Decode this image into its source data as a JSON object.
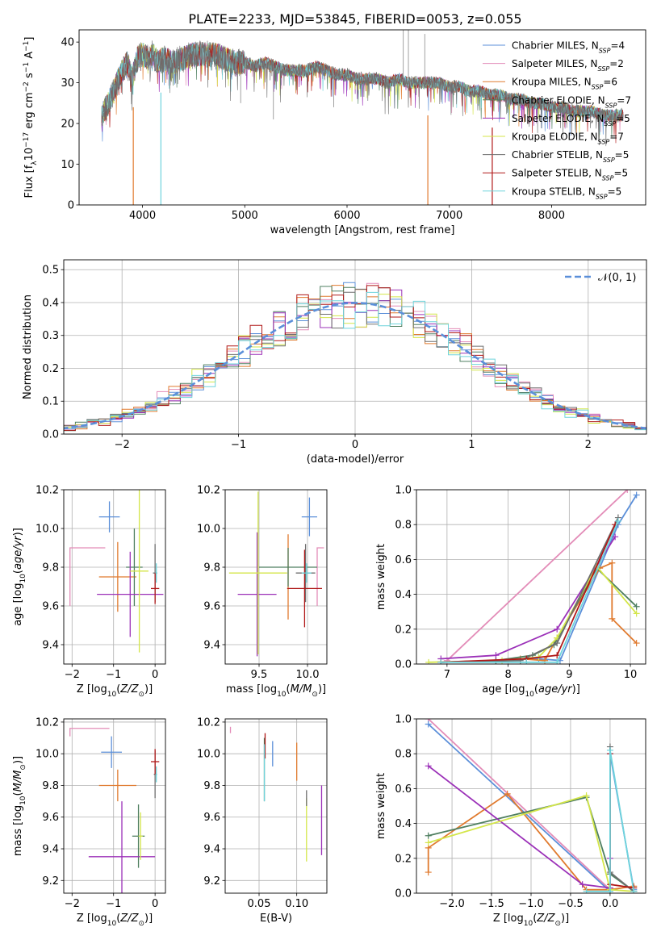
{
  "figure_title": "PLATE=2233, MJD=53845, FIBERID=0053, z=0.055",
  "colors": {
    "Chabrier MILES": "#5b8fd9",
    "Salpeter MILES": "#e38cb8",
    "Kroupa MILES": "#e07a2e",
    "Chabrier ELODIE": "#4f7f60",
    "Salpeter ELODIE": "#9b30b8",
    "Kroupa ELODIE": "#d4e64a",
    "Chabrier STELIB": "#6e6e6e",
    "Salpeter STELIB": "#b01818",
    "Kroupa STELIB": "#6fd4dc"
  },
  "chart_data": [
    {
      "id": "spectrum",
      "type": "line",
      "xlabel": "wavelength [Angstrom, rest frame]",
      "ylabel": "Flux [f",
      "xlim": [
        3380,
        8920
      ],
      "ylim": [
        0,
        43
      ],
      "xticks": [
        4000,
        5000,
        6000,
        7000,
        8000
      ],
      "yticks": [
        0,
        10,
        20,
        30,
        40
      ],
      "grid": false,
      "legend_position": "top-right",
      "legend": [
        {
          "model": "Chabrier MILES",
          "label": "Chabrier MILES, N",
          "n": "4"
        },
        {
          "model": "Salpeter MILES",
          "label": "Salpeter MILES, N",
          "n": "2"
        },
        {
          "model": "Kroupa MILES",
          "label": "Kroupa MILES, N",
          "n": "6"
        },
        {
          "model": "Chabrier ELODIE",
          "label": "Chabrier ELODIE, N",
          "n": "7"
        },
        {
          "model": "Salpeter ELODIE",
          "label": "Salpeter ELODIE, N",
          "n": "5"
        },
        {
          "model": "Kroupa ELODIE",
          "label": "Kroupa ELODIE, N",
          "n": "7"
        },
        {
          "model": "Chabrier STELIB",
          "label": "Chabrier STELIB, N",
          "n": "5"
        },
        {
          "model": "Salpeter STELIB",
          "label": "Salpeter STELIB, N",
          "n": "5"
        },
        {
          "model": "Kroupa STELIB",
          "label": "Kroupa STELIB, N",
          "n": "5"
        }
      ],
      "data_series": {
        "name": "data",
        "x": [
          3600,
          3650,
          3700,
          3750,
          3800,
          3850,
          3900,
          3950,
          4000,
          4050,
          4100,
          4150,
          4200,
          4300,
          4400,
          4500,
          4600,
          4700,
          4800,
          4900,
          5000,
          5100,
          5200,
          5300,
          5400,
          5500,
          5600,
          5700,
          5800,
          5900,
          6000,
          6100,
          6200,
          6300,
          6400,
          6500,
          6600,
          6700,
          6800,
          6900,
          7000,
          7100,
          7200,
          7300,
          7400,
          7500,
          7600,
          7700,
          7800,
          7900,
          8000,
          8100,
          8200,
          8300,
          8400,
          8500,
          8600,
          8700
        ],
        "y": [
          22,
          24,
          27,
          30,
          33,
          35,
          31,
          36,
          37,
          36,
          37,
          35,
          36,
          35,
          36,
          37,
          37,
          37,
          36,
          35,
          35,
          34,
          35,
          34,
          33,
          33,
          33,
          34,
          33,
          32,
          32,
          31,
          31,
          31,
          30,
          31,
          30,
          30,
          30,
          30,
          29,
          29,
          28,
          28,
          27,
          27,
          26,
          26,
          25,
          25,
          24,
          24,
          23,
          23,
          23,
          22,
          22,
          22
        ]
      },
      "drops": [
        {
          "x": 3910,
          "model": "Kroupa MILES",
          "to": 0
        },
        {
          "x": 4180,
          "model": "Kroupa STELIB",
          "to": 0
        },
        {
          "x": 6790,
          "model": "Kroupa MILES",
          "to": 0
        },
        {
          "x": 7420,
          "model": "Salpeter STELIB",
          "to": 0
        }
      ],
      "spikes": [
        {
          "x": 4960,
          "y": 25
        },
        {
          "x": 5280,
          "y": 21
        },
        {
          "x": 5870,
          "y": 24
        },
        {
          "x": 6550,
          "y": 43
        },
        {
          "x": 6600,
          "y": 43
        },
        {
          "x": 6760,
          "y": 42
        }
      ]
    },
    {
      "id": "residuals",
      "type": "bar",
      "xlabel": "(data-model)/error",
      "ylabel": "Normed distribution",
      "xlim": [
        -2.5,
        2.5
      ],
      "ylim": [
        0,
        0.53
      ],
      "xticks": [
        -2,
        -1,
        0,
        1,
        2
      ],
      "yticks": [
        0.0,
        0.1,
        0.2,
        0.3,
        0.4,
        0.5
      ],
      "grid": true,
      "legend": [
        {
          "label": "𝒩(0, 1)"
        }
      ],
      "legend_position": "top-right",
      "bin_width": 0.1
    },
    {
      "id": "age_vs_Z",
      "type": "scatter",
      "xlabel": "Z [log",
      "ylabel": "age  [log",
      "xlim": [
        -2.2,
        0.25
      ],
      "ylim": [
        9.3,
        10.2
      ],
      "xticks": [
        -2,
        -1,
        0
      ],
      "yticks": [
        9.4,
        9.6,
        9.8,
        10.0,
        10.2
      ],
      "grid": true,
      "points": [
        {
          "model": "Chabrier MILES",
          "x": -1.1,
          "xerr": 0.25,
          "y": 10.06,
          "yerr": 0.08
        },
        {
          "model": "Salpeter MILES",
          "x": -2.05,
          "xerr": 0.0,
          "y": 9.9,
          "yerr": 0.3,
          "xspan": [
            -2.05,
            -1.2
          ]
        },
        {
          "model": "Kroupa MILES",
          "x": -0.9,
          "xerr": 0.45,
          "y": 9.75,
          "yerr": 0.18
        },
        {
          "model": "Chabrier ELODIE",
          "x": -0.5,
          "xerr": 0.2,
          "y": 9.8,
          "yerr": 0.2
        },
        {
          "model": "Salpeter ELODIE",
          "x": -0.6,
          "xerr": 0.8,
          "y": 9.66,
          "yerr": 0.22
        },
        {
          "model": "Kroupa ELODIE",
          "x": -0.38,
          "xerr": 0.22,
          "y": 9.78,
          "yerr": 0.42
        },
        {
          "model": "Chabrier STELIB",
          "x": 0.0,
          "xerr": 0.05,
          "y": 9.77,
          "yerr": 0.15
        },
        {
          "model": "Salpeter STELIB",
          "x": 0.0,
          "xerr": 0.1,
          "y": 9.69,
          "yerr": 0.08
        },
        {
          "model": "Kroupa STELIB",
          "x": 0.03,
          "xerr": 0.02,
          "y": 9.77,
          "yerr": 0.05
        }
      ]
    },
    {
      "id": "age_vs_mass",
      "type": "scatter",
      "xlabel": "mass [log",
      "ylabel": "",
      "xlim": [
        9.15,
        10.2
      ],
      "ylim": [
        9.3,
        10.2
      ],
      "xticks": [
        9.5,
        10.0
      ],
      "yticks": [
        9.4,
        9.6,
        9.8,
        10.0,
        10.2
      ],
      "grid": true,
      "points": [
        {
          "model": "Chabrier MILES",
          "x": 10.02,
          "xerr": 0.08,
          "y": 10.06,
          "yerr": 0.1
        },
        {
          "model": "Salpeter MILES",
          "x": 10.17,
          "xerr": 0.0,
          "y": 9.9,
          "yerr": 0.3,
          "xspan": [
            10.1,
            10.17
          ]
        },
        {
          "model": "Kroupa MILES",
          "x": 9.8,
          "xerr": 0.0,
          "y": 9.75,
          "yerr": 0.22
        },
        {
          "model": "Chabrier ELODIE",
          "x": 9.8,
          "xerr": 0.3,
          "y": 9.8,
          "yerr": 0.1
        },
        {
          "model": "Salpeter ELODIE",
          "x": 9.48,
          "xerr": 0.2,
          "y": 9.66,
          "yerr": 0.32
        },
        {
          "model": "Kroupa ELODIE",
          "x": 9.49,
          "xerr": 0.3,
          "y": 9.77,
          "yerr": 0.42
        },
        {
          "model": "Chabrier STELIB",
          "x": 9.98,
          "xerr": 0.1,
          "y": 9.77,
          "yerr": 0.15
        },
        {
          "model": "Salpeter STELIB",
          "x": 9.97,
          "xerr": 0.18,
          "y": 9.69,
          "yerr": 0.2
        },
        {
          "model": "Kroupa STELIB",
          "x": 9.99,
          "xerr": 0.05,
          "y": 9.77,
          "yerr": 0.05
        }
      ]
    },
    {
      "id": "massweight_vs_age",
      "type": "line",
      "xlabel": "age  [log",
      "ylabel": "mass weight",
      "xlim": [
        6.5,
        10.25
      ],
      "ylim": [
        0,
        1.0
      ],
      "xticks": [
        7,
        8,
        9,
        10
      ],
      "yticks": [
        0.0,
        0.2,
        0.4,
        0.6,
        0.8,
        1.0
      ],
      "grid": true,
      "series": [
        {
          "model": "Salpeter MILES",
          "x": [
            7.0,
            9.95
          ],
          "y": [
            0.02,
            1.0
          ]
        },
        {
          "model": "Chabrier MILES",
          "x": [
            6.9,
            7.8,
            8.5,
            8.85,
            9.8,
            10.1
          ],
          "y": [
            0.01,
            0.02,
            0.03,
            0.02,
            0.8,
            0.97
          ]
        },
        {
          "model": "Kroupa MILES",
          "x": [
            6.9,
            7.8,
            8.2,
            8.6,
            8.8,
            9.5,
            9.7,
            9.7,
            10.1
          ],
          "y": [
            0.01,
            0.02,
            0.03,
            0.02,
            0.15,
            0.55,
            0.58,
            0.26,
            0.12
          ]
        },
        {
          "model": "Chabrier ELODIE",
          "x": [
            6.9,
            7.8,
            8.4,
            8.75,
            9.45,
            10.1
          ],
          "y": [
            0.01,
            0.02,
            0.05,
            0.11,
            0.55,
            0.33
          ]
        },
        {
          "model": "Salpeter ELODIE",
          "x": [
            6.9,
            7.8,
            8.8,
            9.75
          ],
          "y": [
            0.03,
            0.05,
            0.2,
            0.73
          ]
        },
        {
          "model": "Kroupa ELODIE",
          "x": [
            6.7,
            7.9,
            8.5,
            8.8,
            9.45,
            10.1
          ],
          "y": [
            0.01,
            0.02,
            0.04,
            0.15,
            0.56,
            0.29
          ]
        },
        {
          "model": "Chabrier STELIB",
          "x": [
            6.9,
            8.2,
            8.8,
            9.8
          ],
          "y": [
            0.01,
            0.02,
            0.12,
            0.84
          ]
        },
        {
          "model": "Salpeter STELIB",
          "x": [
            6.9,
            8.3,
            8.8,
            9.75
          ],
          "y": [
            0.01,
            0.03,
            0.05,
            0.8
          ]
        },
        {
          "model": "Kroupa STELIB",
          "x": [
            6.9,
            8.3,
            8.8,
            9.8
          ],
          "y": [
            0.01,
            0.01,
            0.01,
            0.82
          ]
        }
      ]
    },
    {
      "id": "mass_vs_Z",
      "type": "scatter",
      "xlabel": "Z [log",
      "ylabel": "mass [log",
      "xlim": [
        -2.2,
        0.25
      ],
      "ylim": [
        9.12,
        10.22
      ],
      "xticks": [
        -2,
        -1,
        0
      ],
      "yticks": [
        9.2,
        9.4,
        9.6,
        9.8,
        10.0,
        10.2
      ],
      "grid": true,
      "points": [
        {
          "model": "Chabrier MILES",
          "x": -1.05,
          "xerr": 0.25,
          "y": 10.01,
          "yerr": 0.1
        },
        {
          "model": "Salpeter MILES",
          "x": -2.05,
          "xerr": 0.0,
          "y": 10.16,
          "yerr": 0.05,
          "xspan": [
            -2.05,
            -1.1
          ]
        },
        {
          "model": "Kroupa MILES",
          "x": -0.9,
          "xerr": 0.45,
          "y": 9.8,
          "yerr": 0.1
        },
        {
          "model": "Chabrier ELODIE",
          "x": -0.4,
          "xerr": 0.15,
          "y": 9.48,
          "yerr": 0.2
        },
        {
          "model": "Salpeter ELODIE",
          "x": -0.8,
          "xerr": 0.8,
          "y": 9.35,
          "yerr": 0.35
        },
        {
          "model": "Kroupa ELODIE",
          "x": -0.35,
          "xerr": 0.05,
          "y": 9.48,
          "yerr": 0.15
        },
        {
          "model": "Chabrier STELIB",
          "x": 0.0,
          "xerr": 0.03,
          "y": 9.87,
          "yerr": 0.15
        },
        {
          "model": "Salpeter STELIB",
          "x": 0.0,
          "xerr": 0.1,
          "y": 9.95,
          "yerr": 0.08
        },
        {
          "model": "Kroupa STELIB",
          "x": 0.03,
          "xerr": 0.02,
          "y": 9.87,
          "yerr": 0.05
        }
      ]
    },
    {
      "id": "mass_vs_ebv",
      "type": "scatter",
      "xlabel": "E(B-V)",
      "ylabel": "",
      "xlim": [
        0.005,
        0.14
      ],
      "ylim": [
        9.12,
        10.22
      ],
      "xticks": [
        0.05,
        0.1
      ],
      "yticks": [
        9.2,
        9.4,
        9.6,
        9.8,
        10.0,
        10.2
      ],
      "grid": true,
      "points": [
        {
          "model": "Chabrier MILES",
          "x": 0.068,
          "y": 10.0,
          "yerr": 0.08
        },
        {
          "model": "Salpeter MILES",
          "x": 0.012,
          "y": 10.15,
          "yerr": 0.02
        },
        {
          "model": "Kroupa MILES",
          "x": 0.1,
          "y": 9.95,
          "yerr": 0.12
        },
        {
          "model": "Chabrier ELODIE",
          "x": 0.057,
          "y": 9.9,
          "yerr": 0.2
        },
        {
          "model": "Salpeter ELODIE",
          "x": 0.133,
          "y": 9.58,
          "yerr": 0.22
        },
        {
          "model": "Kroupa ELODIE",
          "x": 0.113,
          "y": 9.52,
          "yerr": 0.2
        },
        {
          "model": "Chabrier STELIB",
          "x": 0.113,
          "y": 9.72,
          "yerr": 0.05
        },
        {
          "model": "Salpeter STELIB",
          "x": 0.058,
          "y": 10.05,
          "yerr": 0.08
        },
        {
          "model": "Kroupa STELIB",
          "x": 0.057,
          "y": 9.88,
          "yerr": 0.18
        }
      ]
    },
    {
      "id": "massweight_vs_Z",
      "type": "line",
      "xlabel": "Z [log",
      "ylabel": "mass weight",
      "xlim": [
        -2.45,
        0.45
      ],
      "ylim": [
        0,
        1.0
      ],
      "xticks": [
        -2.0,
        -1.5,
        -1.0,
        -0.5,
        0.0
      ],
      "yticks": [
        0.0,
        0.2,
        0.4,
        0.6,
        0.8,
        1.0
      ],
      "grid": true,
      "series": [
        {
          "model": "Salpeter MILES",
          "x": [
            -2.3,
            0.0
          ],
          "y": [
            1.0,
            0.02
          ]
        },
        {
          "model": "Chabrier MILES",
          "x": [
            -2.3,
            0.0,
            0.0,
            0.3
          ],
          "y": [
            0.97,
            0.01,
            0.8,
            0.02
          ]
        },
        {
          "model": "Kroupa MILES",
          "x": [
            -2.3,
            -2.3,
            -1.3,
            -0.3,
            0.0,
            0.3
          ],
          "y": [
            0.12,
            0.26,
            0.57,
            0.02,
            0.02,
            0.04
          ]
        },
        {
          "model": "Chabrier ELODIE",
          "x": [
            -2.3,
            -0.3,
            0.0,
            0.3
          ],
          "y": [
            0.33,
            0.55,
            0.11,
            0.01
          ]
        },
        {
          "model": "Salpeter ELODIE",
          "x": [
            -2.3,
            -0.35,
            0.0,
            0.0
          ],
          "y": [
            0.73,
            0.05,
            0.03,
            0.2
          ]
        },
        {
          "model": "Kroupa ELODIE",
          "x": [
            -2.3,
            -0.3,
            0.0,
            0.3
          ],
          "y": [
            0.29,
            0.56,
            0.02,
            0.01
          ]
        },
        {
          "model": "Chabrier STELIB",
          "x": [
            0.0,
            0.0,
            0.3
          ],
          "y": [
            0.84,
            0.12,
            0.01
          ]
        },
        {
          "model": "Salpeter STELIB",
          "x": [
            0.0,
            0.0,
            0.3
          ],
          "y": [
            0.8,
            0.05,
            0.03
          ]
        },
        {
          "model": "Kroupa STELIB",
          "x": [
            -0.3,
            0.0,
            0.0,
            0.3
          ],
          "y": [
            0.01,
            0.01,
            0.82,
            0.01
          ]
        }
      ]
    }
  ]
}
